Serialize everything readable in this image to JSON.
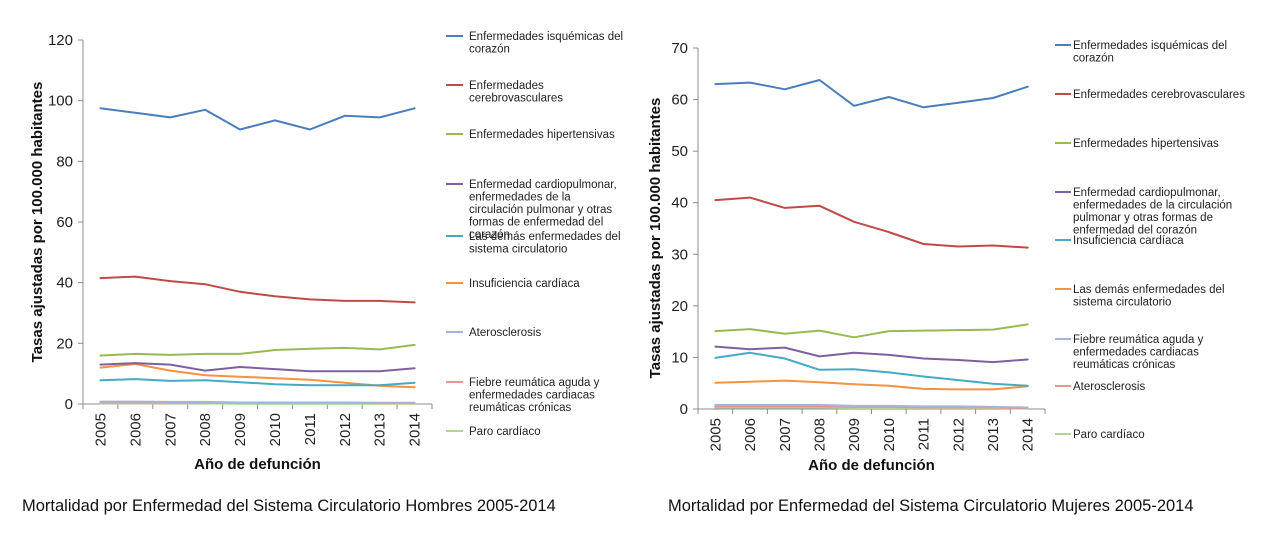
{
  "captions": [
    "Mortalidad por Enfermedad del Sistema Circulatorio Hombres 2005-2014",
    "Mortalidad por Enfermedad del Sistema Circulatorio Mujeres 2005-2014"
  ],
  "chart_data": [
    {
      "type": "line",
      "title": "",
      "xlabel": "Año de defunción",
      "ylabel": "Tasas ajustadas por 100.000 habitantes",
      "ylim": [
        0,
        120
      ],
      "yticks": [
        0,
        20,
        40,
        60,
        80,
        100,
        120
      ],
      "grid": false,
      "legend_position": "right",
      "x": [
        "2005",
        "2006",
        "2007",
        "2008",
        "2009",
        "2010",
        "2011",
        "2012",
        "2013",
        "2014"
      ],
      "series": [
        {
          "name": "Enfermedades isquémicas del corazón",
          "color": "#4a7ebb",
          "values": [
            97.5,
            96,
            94.5,
            97,
            90.5,
            93.5,
            90.5,
            95,
            94.5,
            97.5
          ]
        },
        {
          "name": "Enfermedades cerebrovasculares",
          "color": "#be4b48",
          "values": [
            41.5,
            42,
            40.5,
            39.5,
            37,
            35.5,
            34.5,
            34,
            34,
            33.5
          ]
        },
        {
          "name": "Enfermedades hipertensivas",
          "color": "#98b954",
          "values": [
            16,
            16.5,
            16.2,
            16.5,
            16.5,
            17.8,
            18.2,
            18.5,
            18,
            19.5
          ]
        },
        {
          "name": "Enfermedad cardiopulmonar, enfermedades de la circulación pulmonar y otras formas de enfermedad del corazón",
          "color": "#7d60a0",
          "values": [
            13,
            13.5,
            13,
            11,
            12.2,
            11.5,
            10.8,
            10.8,
            10.8,
            11.8
          ]
        },
        {
          "name": "Las demás enfermedades del sistema circulatorio",
          "color": "#46aac5",
          "values": [
            7.8,
            8.2,
            7.6,
            7.8,
            7.2,
            6.5,
            6.2,
            6.2,
            6.2,
            7
          ]
        },
        {
          "name": "Insuficiencia cardíaca",
          "color": "#f69240",
          "values": [
            12,
            13.2,
            11,
            9.5,
            9,
            8.5,
            8,
            7,
            6,
            5.5
          ]
        },
        {
          "name": "Aterosclerosis",
          "color": "#a5b4db",
          "values": [
            0.8,
            0.8,
            0.7,
            0.7,
            0.5,
            0.5,
            0.5,
            0.5,
            0.4,
            0.4
          ]
        },
        {
          "name": "Fiebre reumática aguda y enfermedades cardiacas reumáticas crónicas",
          "color": "#e69693",
          "values": [
            0.5,
            0.5,
            0.5,
            0.5,
            0.4,
            0.4,
            0.4,
            0.4,
            0.3,
            0.3
          ]
        },
        {
          "name": "Paro cardíaco",
          "color": "#b6d48e",
          "values": [
            0.2,
            0.2,
            0.2,
            0.2,
            0.1,
            0.1,
            0.1,
            0.1,
            0.1,
            0.1
          ]
        }
      ]
    },
    {
      "type": "line",
      "title": "",
      "xlabel": "Año de defunción",
      "ylabel": "Tasas ajustadas por 100.000 habitantes",
      "ylim": [
        0,
        70
      ],
      "yticks": [
        0,
        10,
        20,
        30,
        40,
        50,
        60,
        70
      ],
      "grid": false,
      "legend_position": "right",
      "x": [
        "2005",
        "2006",
        "2007",
        "2008",
        "2009",
        "2010",
        "2011",
        "2012",
        "2013",
        "2014"
      ],
      "series": [
        {
          "name": "Enfermedades isquémicas del corazón",
          "color": "#4a7ebb",
          "values": [
            63,
            63.3,
            62,
            63.8,
            58.8,
            60.5,
            58.5,
            59.4,
            60.3,
            62.5
          ]
        },
        {
          "name": "Enfermedades cerebrovasculares",
          "color": "#be4b48",
          "values": [
            40.5,
            41,
            39,
            39.4,
            36.3,
            34.3,
            32,
            31.5,
            31.7,
            31.3
          ]
        },
        {
          "name": "Enfermedades hipertensivas",
          "color": "#98b954",
          "values": [
            15.1,
            15.5,
            14.6,
            15.2,
            13.9,
            15.1,
            15.2,
            15.3,
            15.4,
            16.4
          ]
        },
        {
          "name": "Enfermedad cardiopulmonar, enfermedades de la circulación pulmonar y otras formas de enfermedad del corazón",
          "color": "#7d60a0",
          "values": [
            12.1,
            11.6,
            11.9,
            10.2,
            10.9,
            10.5,
            9.8,
            9.5,
            9.1,
            9.6
          ]
        },
        {
          "name": "Insuficiencia cardíaca",
          "color": "#46aac5",
          "values": [
            9.9,
            10.9,
            9.8,
            7.6,
            7.7,
            7.1,
            6.3,
            5.6,
            4.9,
            4.5
          ]
        },
        {
          "name": "Las demás enfermedades del sistema circulatorio",
          "color": "#f69240",
          "values": [
            5.1,
            5.3,
            5.5,
            5.2,
            4.8,
            4.5,
            3.9,
            3.8,
            3.8,
            4.4
          ]
        },
        {
          "name": "Fiebre reumática aguda y enfermedades cardiacas reumáticas crónicas",
          "color": "#a5b4db",
          "values": [
            0.8,
            0.8,
            0.8,
            0.8,
            0.6,
            0.6,
            0.5,
            0.5,
            0.4,
            0.3
          ]
        },
        {
          "name": "Aterosclerosis",
          "color": "#e69693",
          "values": [
            0.5,
            0.5,
            0.5,
            0.5,
            0.4,
            0.4,
            0.3,
            0.3,
            0.3,
            0.1
          ]
        },
        {
          "name": "Paro cardíaco",
          "color": "#b6d48e",
          "values": [
            0.3,
            0.3,
            0.3,
            0.3,
            0.2,
            0.2,
            0.2,
            0.2,
            0.2,
            0.1
          ]
        }
      ]
    }
  ]
}
